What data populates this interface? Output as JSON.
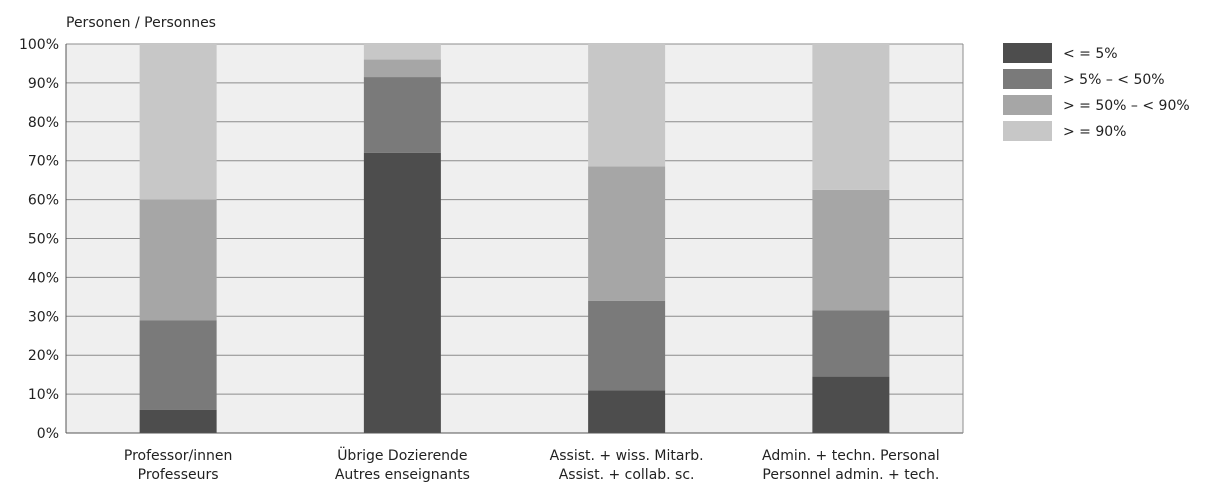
{
  "chart_data": {
    "type": "bar",
    "stacked": true,
    "y_unit_label": "Personen / Personnes",
    "categories": [
      [
        "Professor/innen",
        "Professeurs"
      ],
      [
        "Übrige Dozierende",
        "Autres enseignants"
      ],
      [
        "Assist. + wiss. Mitarb.",
        "Assist. + collab. sc."
      ],
      [
        "Admin. + techn. Personal",
        "Personnel admin. + tech."
      ]
    ],
    "series": [
      {
        "name": "< = 5%",
        "color": "#4d4d4d",
        "values": [
          6,
          72,
          11,
          14.5
        ]
      },
      {
        "name": "> 5% – < 50%",
        "color": "#7a7a7a",
        "values": [
          23,
          19.5,
          23,
          17
        ]
      },
      {
        "name": "> = 50% – < 90%",
        "color": "#a6a6a6",
        "values": [
          31,
          4.5,
          34.5,
          31
        ]
      },
      {
        "name": "> = 90%",
        "color": "#c7c7c7",
        "values": [
          40,
          4,
          31.5,
          37.5
        ]
      }
    ],
    "ylim": [
      0,
      100
    ],
    "yticks": [
      "0%",
      "10%",
      "20%",
      "30%",
      "40%",
      "50%",
      "60%",
      "70%",
      "80%",
      "90%",
      "100%"
    ],
    "plot_background": "#efefef",
    "grid": true,
    "legend_position": "right"
  }
}
